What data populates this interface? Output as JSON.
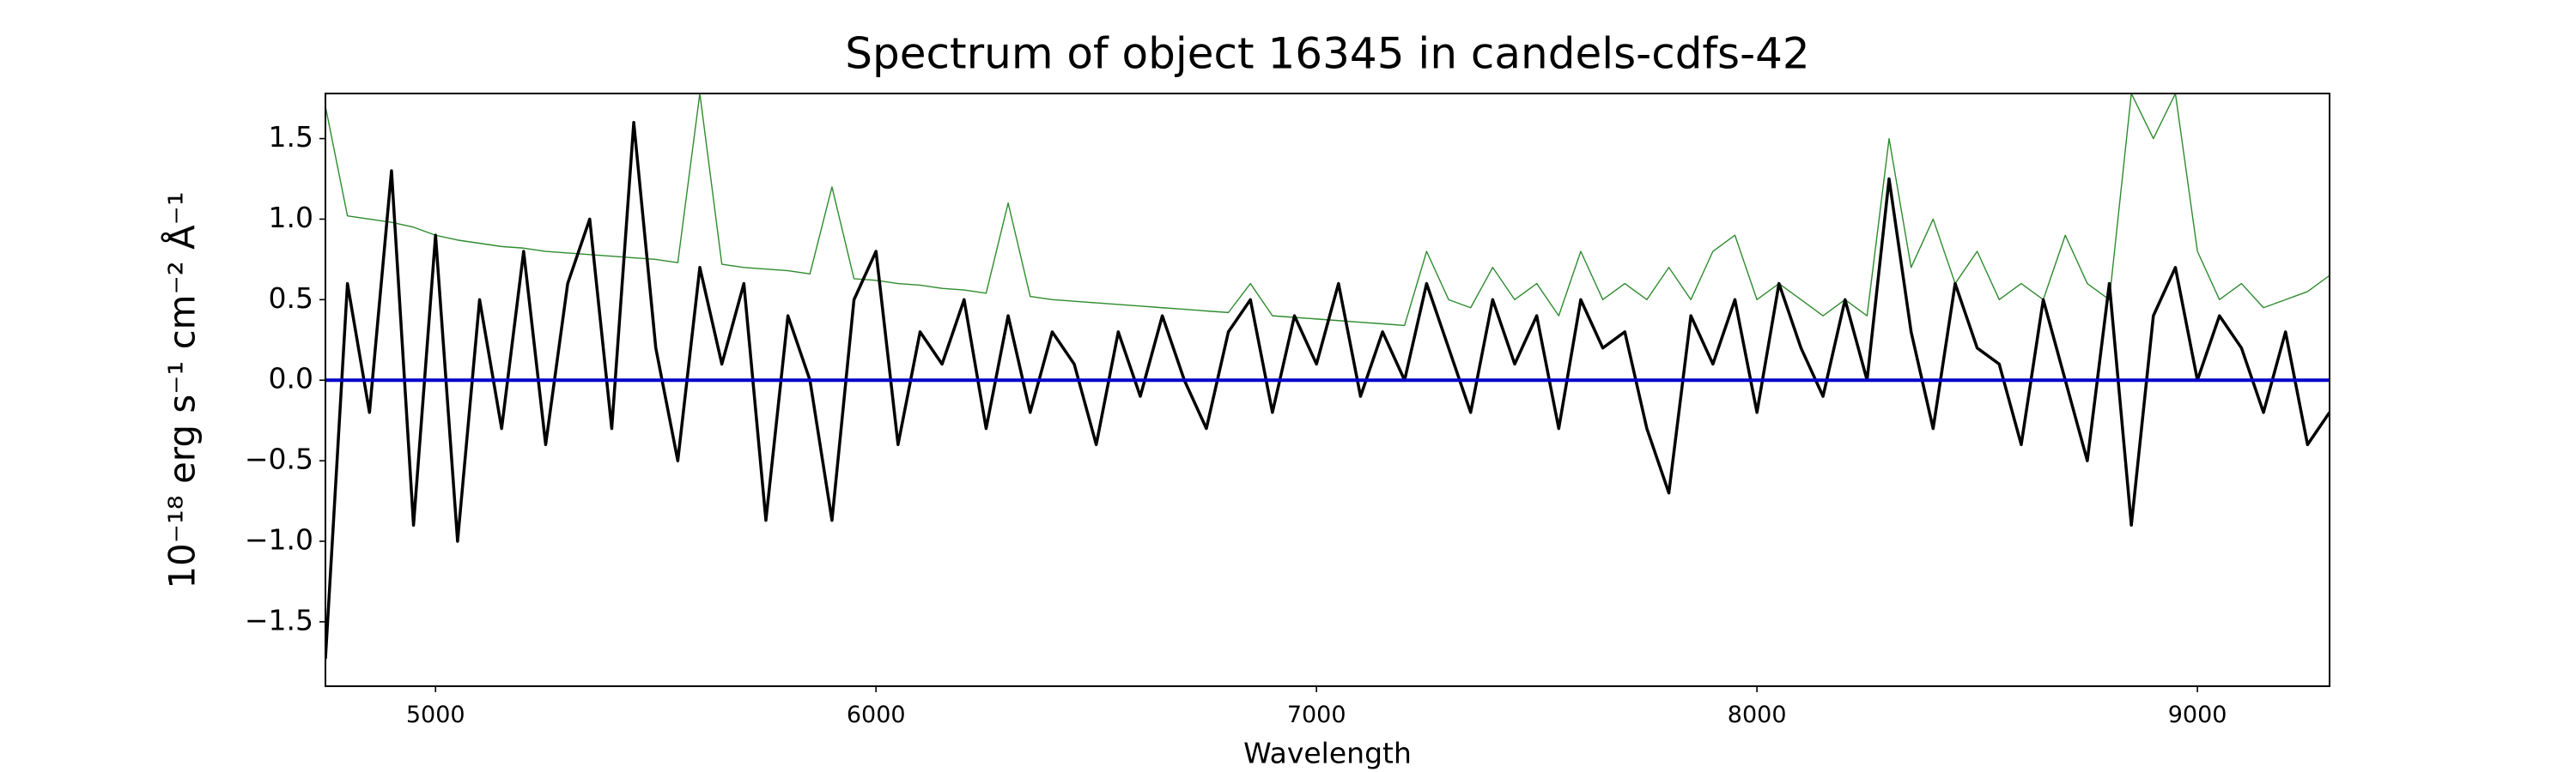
{
  "chart_data": {
    "type": "line",
    "title": "Spectrum of object 16345 in candels-cdfs-42",
    "xlabel": "Wavelength",
    "ylabel": "10⁻¹⁸ erg s⁻¹ cm⁻² Å⁻¹",
    "x": [
      4750,
      4800,
      4850,
      4900,
      4950,
      5000,
      5050,
      5100,
      5150,
      5200,
      5250,
      5300,
      5350,
      5400,
      5450,
      5500,
      5550,
      5600,
      5650,
      5700,
      5750,
      5800,
      5850,
      5900,
      5950,
      6000,
      6050,
      6100,
      6150,
      6200,
      6250,
      6300,
      6350,
      6400,
      6450,
      6500,
      6550,
      6600,
      6650,
      6700,
      6750,
      6800,
      6850,
      6900,
      6950,
      7000,
      7050,
      7100,
      7150,
      7200,
      7250,
      7300,
      7350,
      7400,
      7450,
      7500,
      7550,
      7600,
      7650,
      7700,
      7750,
      7800,
      7850,
      7900,
      7950,
      8000,
      8050,
      8100,
      8150,
      8200,
      8250,
      8300,
      8350,
      8400,
      8450,
      8500,
      8550,
      8600,
      8650,
      8700,
      8750,
      8800,
      8850,
      8900,
      8950,
      9000,
      9050,
      9100,
      9150,
      9200,
      9250,
      9300
    ],
    "series": [
      {
        "color": "#2e8b2e",
        "width": 1.4,
        "values": [
          1.7,
          1.02,
          1.0,
          0.98,
          0.95,
          0.9,
          0.87,
          0.85,
          0.83,
          0.82,
          0.8,
          0.79,
          0.78,
          0.77,
          0.76,
          0.75,
          0.73,
          1.78,
          0.72,
          0.7,
          0.69,
          0.68,
          0.66,
          1.2,
          0.63,
          0.62,
          0.6,
          0.59,
          0.57,
          0.56,
          0.54,
          1.1,
          0.52,
          0.5,
          0.49,
          0.48,
          0.47,
          0.46,
          0.45,
          0.44,
          0.43,
          0.42,
          0.6,
          0.4,
          0.39,
          0.38,
          0.37,
          0.36,
          0.35,
          0.34,
          0.8,
          0.5,
          0.45,
          0.7,
          0.5,
          0.6,
          0.4,
          0.8,
          0.5,
          0.6,
          0.5,
          0.7,
          0.5,
          0.8,
          0.9,
          0.5,
          0.6,
          0.5,
          0.4,
          0.5,
          0.4,
          1.5,
          0.7,
          1.0,
          0.6,
          0.8,
          0.5,
          0.6,
          0.5,
          0.9,
          0.6,
          0.5,
          1.78,
          1.5,
          1.78,
          0.8,
          0.5,
          0.6,
          0.45,
          0.5,
          0.55,
          0.65
        ]
      },
      {
        "color": "#000000",
        "width": 3.5,
        "values": [
          -1.73,
          0.6,
          -0.2,
          1.3,
          -0.9,
          0.9,
          -1.0,
          0.5,
          -0.3,
          0.8,
          -0.4,
          0.6,
          1.0,
          -0.3,
          1.6,
          0.2,
          -0.5,
          0.7,
          0.1,
          0.6,
          -0.87,
          0.4,
          0.0,
          -0.87,
          0.5,
          0.8,
          -0.4,
          0.3,
          0.1,
          0.5,
          -0.3,
          0.4,
          -0.2,
          0.3,
          0.1,
          -0.4,
          0.3,
          -0.1,
          0.4,
          0.0,
          -0.3,
          0.3,
          0.5,
          -0.2,
          0.4,
          0.1,
          0.6,
          -0.1,
          0.3,
          0.0,
          0.6,
          0.2,
          -0.2,
          0.5,
          0.1,
          0.4,
          -0.3,
          0.5,
          0.2,
          0.3,
          -0.3,
          -0.7,
          0.4,
          0.1,
          0.5,
          -0.2,
          0.6,
          0.2,
          -0.1,
          0.5,
          0.0,
          1.25,
          0.3,
          -0.3,
          0.6,
          0.2,
          0.1,
          -0.4,
          0.5,
          0.0,
          -0.5,
          0.6,
          -0.9,
          0.4,
          0.7,
          0.0,
          0.4,
          0.2,
          -0.2,
          0.3,
          -0.4,
          -0.2
        ]
      },
      {
        "color": "#0000cc",
        "width": 4,
        "x": [
          4750,
          9300
        ],
        "values": [
          0,
          0
        ]
      }
    ],
    "xlim": [
      4750,
      9300
    ],
    "ylim": [
      -1.9,
      1.78
    ],
    "xticks": [
      5000,
      6000,
      7000,
      8000,
      9000
    ],
    "yticks": [
      {
        "value": -1.5,
        "label": "−1.5"
      },
      {
        "value": -1.0,
        "label": "−1.0"
      },
      {
        "value": -0.5,
        "label": "−0.5"
      },
      {
        "value": 0,
        "label": "0.0"
      },
      0.5,
      {
        "value": 1.0,
        "label": "1.0"
      },
      1.5
    ],
    "grid": false
  }
}
